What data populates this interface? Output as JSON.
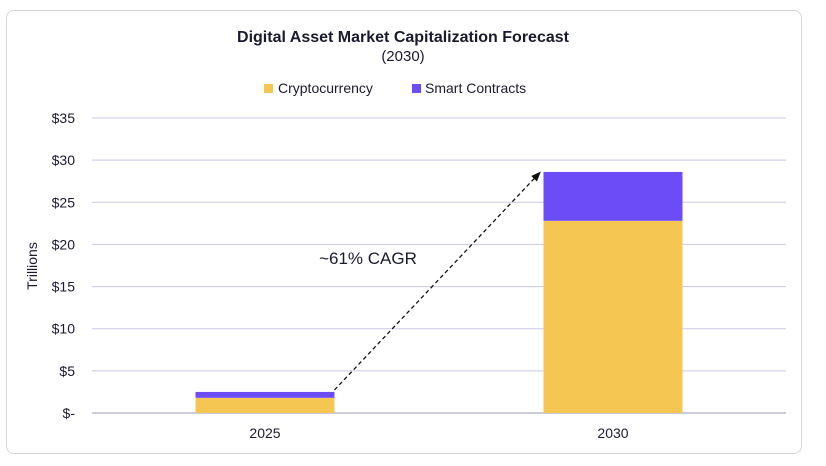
{
  "chart_data": {
    "type": "bar",
    "stacked": true,
    "title": "Digital Asset Market Capitalization Forecast",
    "subtitle": "(2030)",
    "xlabel": "",
    "ylabel": "Trillions",
    "categories": [
      "2025",
      "2030"
    ],
    "series": [
      {
        "name": "Cryptocurrency",
        "values": [
          1.8,
          22.8
        ],
        "color": "#F5C752"
      },
      {
        "name": "Smart Contracts",
        "values": [
          0.7,
          5.8
        ],
        "color": "#6C4CF6"
      }
    ],
    "ylim": [
      0,
      35
    ],
    "yticks": [
      0,
      5,
      10,
      15,
      20,
      25,
      30,
      35
    ],
    "ytick_labels": [
      "$-",
      "$5",
      "$10",
      "$15",
      "$20",
      "$25",
      "$30",
      "$35"
    ],
    "grid": true,
    "legend_position": "top",
    "annotation": {
      "text": "~61% CAGR",
      "arrow_from": "2025",
      "arrow_to": "2030"
    }
  }
}
